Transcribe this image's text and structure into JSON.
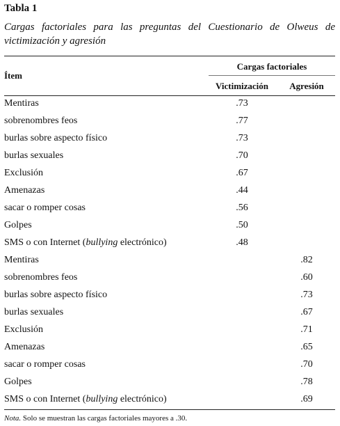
{
  "header": {
    "title": "Tabla 1",
    "caption": "Cargas factoriales para las preguntas del Cuestionario de Olweus de victimización y agresión"
  },
  "table": {
    "item_header": "Ítem",
    "group_header": "Cargas factoriales",
    "columns": [
      "Victimización",
      "Agresión"
    ],
    "rows": [
      {
        "item": "Mentiras",
        "victimizacion": ".73"
      },
      {
        "item": "sobrenombres feos",
        "victimizacion": ".77"
      },
      {
        "item": "burlas sobre aspecto físico",
        "victimizacion": ".73"
      },
      {
        "item": "burlas sexuales",
        "victimizacion": ".70"
      },
      {
        "item": "Exclusión",
        "victimizacion": ".67"
      },
      {
        "item": "Amenazas",
        "victimizacion": ".44"
      },
      {
        "item": "sacar o romper cosas",
        "victimizacion": ".56"
      },
      {
        "item": "Golpes",
        "victimizacion": ".50"
      },
      {
        "item": [
          "SMS o con Internet (",
          "bullying",
          " electrónico)"
        ],
        "victimizacion": ".48"
      },
      {
        "item": "Mentiras",
        "agresion": ".82"
      },
      {
        "item": "sobrenombres feos",
        "agresion": ".60"
      },
      {
        "item": "burlas sobre aspecto físico",
        "agresion": ".73"
      },
      {
        "item": "burlas sexuales",
        "agresion": ".67"
      },
      {
        "item": "Exclusión",
        "agresion": ".71"
      },
      {
        "item": "Amenazas",
        "agresion": ".65"
      },
      {
        "item": "sacar o romper cosas",
        "agresion": ".70"
      },
      {
        "item": "Golpes",
        "agresion": ".78"
      },
      {
        "item": [
          "SMS o con Internet (",
          "bullying",
          " electrónico)"
        ],
        "agresion": ".69"
      }
    ]
  },
  "note": {
    "label": "Nota.",
    "text": "Solo se muestran las cargas factoriales mayores a .30."
  }
}
